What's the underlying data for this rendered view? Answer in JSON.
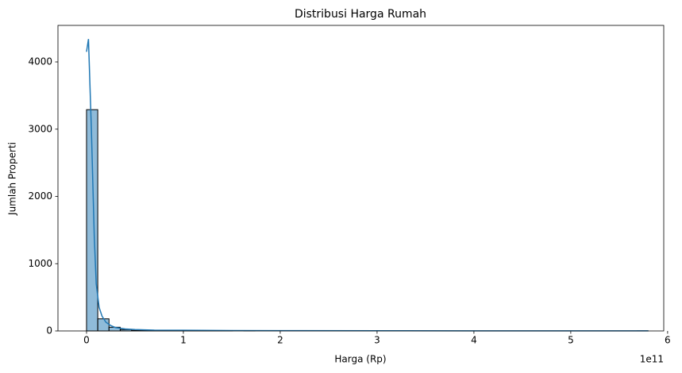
{
  "chart_data": {
    "type": "histogram",
    "title": "Distribusi Harga Rumah",
    "x_label": "Harga (Rp)",
    "y_label": "Jumlah Properti",
    "x_offset_label": "1e11",
    "bins": [
      0,
      11600000000.0,
      23200000000.0,
      34800000000.0,
      46400000000.0,
      58000000000.0,
      69600000000.0,
      81200000000.0,
      92800000000.0,
      104400000000.0,
      116000000000.0,
      127600000000.0,
      139200000000.0,
      150800000000.0,
      162400000000.0,
      174000000000.0,
      185600000000.0,
      197200000000.0,
      208800000000.0,
      220400000000.0,
      232000000000.0,
      243600000000.0,
      255200000000.0,
      266800000000.0,
      278400000000.0,
      290000000000.0,
      301600000000.0,
      313200000000.0,
      324800000000.0,
      336400000000.0,
      348000000000.0,
      359600000000.0,
      371200000000.0,
      382800000000.0,
      394400000000.0,
      406000000000.0,
      417600000000.0,
      429200000000.0,
      440800000000.0,
      452400000000.0,
      464000000000.0,
      475600000000.0,
      487200000000.0,
      498800000000.0,
      510400000000.0,
      522000000000.0,
      533600000000.0,
      545200000000.0,
      556800000000.0,
      568400000000.0,
      580000000000.0
    ],
    "counts": [
      3290,
      180,
      55,
      20,
      10,
      6,
      4,
      3,
      2,
      2,
      1,
      1,
      1,
      0,
      1,
      0,
      0,
      0,
      0,
      0,
      0,
      0,
      0,
      0,
      0,
      0,
      0,
      0,
      0,
      0,
      0,
      0,
      0,
      0,
      0,
      0,
      0,
      0,
      0,
      0,
      0,
      0,
      0,
      0,
      0,
      0,
      0,
      0,
      0,
      1
    ],
    "color": "#1f77b4",
    "kde": {
      "x": [
        0,
        2000000000.0,
        5000000000.0,
        8000000000.0,
        10000000000.0,
        13000000000.0,
        16000000000.0,
        20000000000.0,
        25000000000.0,
        30000000000.0,
        40000000000.0,
        50000000000.0,
        70000000000.0,
        100000000000.0,
        150000000000.0,
        200000000000.0,
        300000000000.0,
        400000000000.0,
        500000000000.0,
        580000000000.0
      ],
      "values": [
        4150,
        4340,
        3000,
        1400,
        700,
        350,
        220,
        130,
        80,
        50,
        30,
        20,
        12,
        10,
        6,
        4,
        3,
        2,
        2,
        1
      ]
    },
    "xlim": [
      -29500000000.0,
      596000000000.0
    ],
    "ylim": [
      0,
      4543
    ],
    "xticks": [
      {
        "value": 0,
        "label": "0"
      },
      {
        "value": 100000000000.0,
        "label": "1"
      },
      {
        "value": 200000000000.0,
        "label": "2"
      },
      {
        "value": 300000000000.0,
        "label": "3"
      },
      {
        "value": 400000000000.0,
        "label": "4"
      },
      {
        "value": 500000000000.0,
        "label": "5"
      },
      {
        "value": 600000000000.0,
        "label": "6"
      }
    ],
    "yticks": [
      0,
      1000,
      2000,
      3000,
      4000
    ],
    "grid": false
  }
}
